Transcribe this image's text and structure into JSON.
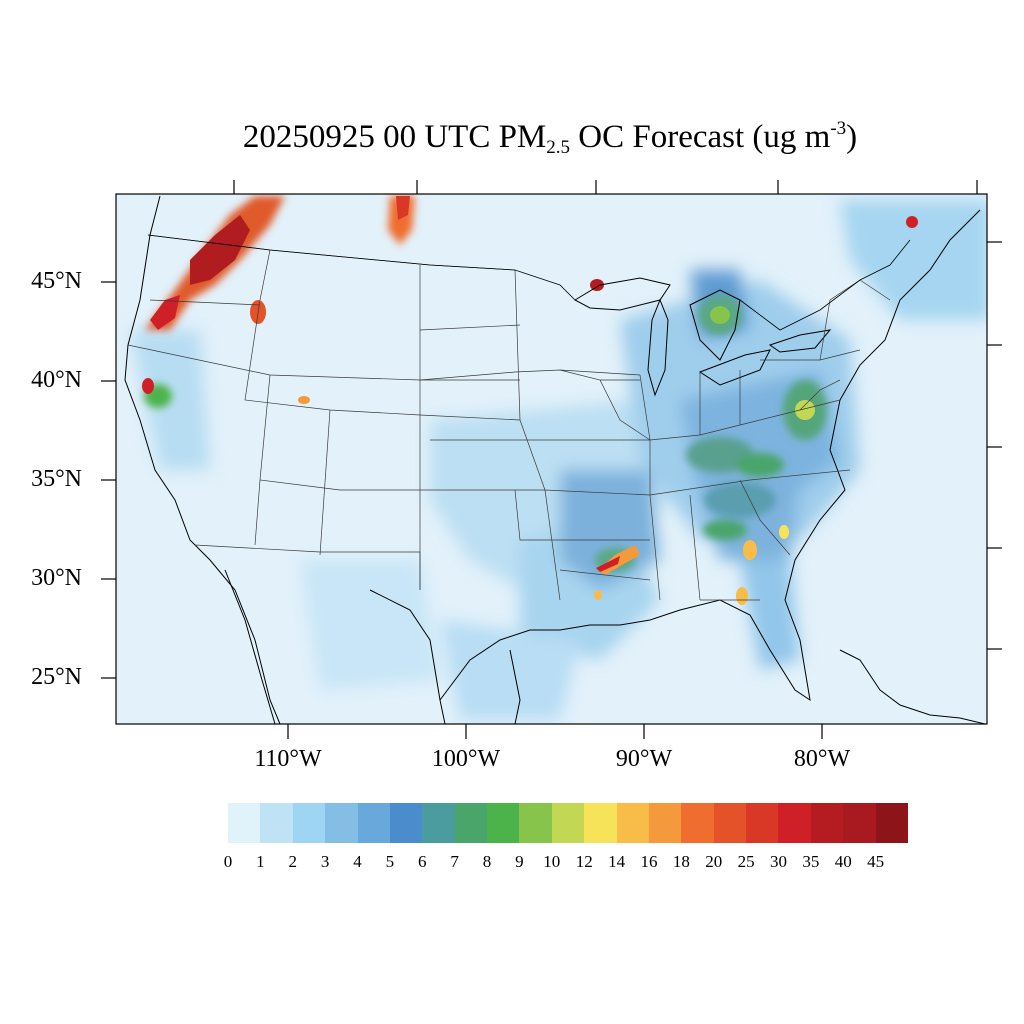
{
  "title": {
    "prefix": "20250925 00 UTC PM",
    "subscript": "2.5",
    "middle": " OC Forecast (ug m",
    "superscript": "-3",
    "suffix": ")"
  },
  "map": {
    "region": "Continental United States",
    "variable": "PM2.5 OC",
    "units": "ug m-3",
    "lat_labels": [
      "45°N",
      "40°N",
      "35°N",
      "30°N",
      "25°N"
    ],
    "lon_labels": [
      "110°W",
      "100°W",
      "90°W",
      "80°W"
    ],
    "background_color": "#e4f2fa",
    "hotspots": [
      {
        "place": "Washington / British Columbia smoke",
        "level": "40-45"
      },
      {
        "place": "Oregon coast",
        "level": "30-40"
      },
      {
        "place": "Idaho",
        "level": "25-30"
      },
      {
        "place": "Northern California",
        "level": "35-40"
      },
      {
        "place": "Louisiana",
        "level": "30-40"
      },
      {
        "place": "Georgia / South Carolina",
        "level": "16-25"
      },
      {
        "place": "Lake Superior",
        "level": "30-35"
      },
      {
        "place": "Alberta / Saskatchewan",
        "level": "20-30"
      }
    ]
  },
  "legend": {
    "colors": [
      "#e0f3fb",
      "#bfe3f5",
      "#9dd5f3",
      "#84bee5",
      "#68a8da",
      "#4a8ccc",
      "#4a9c9e",
      "#4aa56a",
      "#4cb34a",
      "#86c44c",
      "#c2d754",
      "#f6e35a",
      "#f7bd48",
      "#f59a3c",
      "#ef6d2e",
      "#e45229",
      "#da3826",
      "#cf1f27",
      "#b51c22",
      "#a81a1f",
      "#8d1519"
    ],
    "labels": [
      "0",
      "1",
      "2",
      "3",
      "4",
      "5",
      "6",
      "7",
      "8",
      "9",
      "10",
      "12",
      "14",
      "16",
      "18",
      "20",
      "25",
      "30",
      "35",
      "40",
      "45"
    ]
  }
}
